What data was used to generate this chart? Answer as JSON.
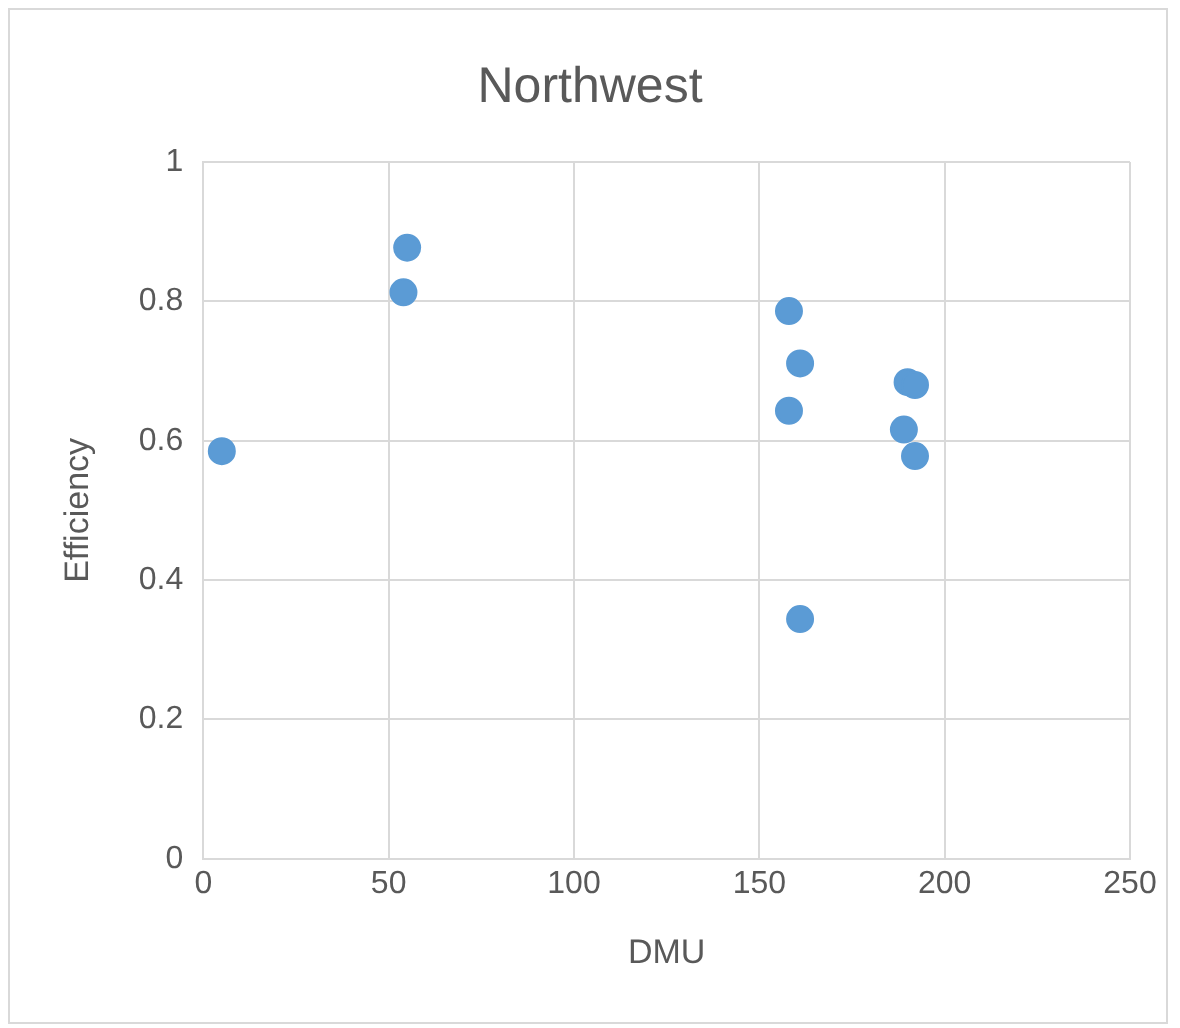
{
  "chart_data": {
    "type": "scatter",
    "title": "Northwest",
    "xlabel": "DMU",
    "ylabel": "Efficiency",
    "series": [
      {
        "color": "#5b9bd5",
        "x": [
          5,
          55,
          54,
          158,
          161,
          158,
          161,
          190,
          192,
          189,
          192
        ],
        "values": [
          0.585,
          0.877,
          0.813,
          0.786,
          0.711,
          0.643,
          0.344,
          0.684,
          0.68,
          0.616,
          0.578
        ]
      }
    ],
    "xlim": [
      0,
      250
    ],
    "xticks": [
      0,
      50,
      100,
      150,
      200,
      250
    ],
    "ylim": [
      0,
      1
    ],
    "yticks": [
      0,
      0.2,
      0.4,
      0.6,
      0.8,
      1
    ],
    "grid": true,
    "legend": false,
    "marker": "circle"
  }
}
